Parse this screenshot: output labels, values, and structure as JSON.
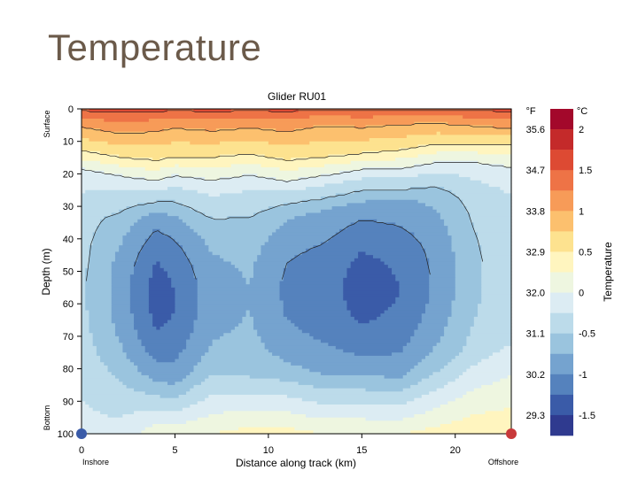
{
  "slide": {
    "title": "Temperature"
  },
  "chart_data": {
    "type": "heatmap",
    "subtype": "filled-contour",
    "title": "Glider RU01",
    "xlabel": "Distance along track (km)",
    "ylabel": "Depth (m)",
    "xlim": [
      0,
      23
    ],
    "ylim": [
      100,
      0
    ],
    "x_ticks": [
      "0",
      "5",
      "10",
      "15",
      "20"
    ],
    "y_ticks": [
      "0",
      "10",
      "20",
      "30",
      "40",
      "50",
      "60",
      "70",
      "80",
      "90",
      "100"
    ],
    "y_annotations": {
      "top": "Surface",
      "bottom": "Bottom"
    },
    "x_annotations": {
      "left": "Inshore",
      "right": "Offshore"
    },
    "endpoint_markers": [
      {
        "label": "Inshore",
        "x": 0,
        "y": 100,
        "color": "#3a5ba8"
      },
      {
        "label": "Offshore",
        "x": 23,
        "y": 100,
        "color": "#c8393a"
      }
    ],
    "colorbar": {
      "label": "Temperature",
      "unit_left": "°F",
      "unit_right": "°C",
      "levels_c": [
        -1.5,
        -1.25,
        -1,
        -0.75,
        -0.5,
        -0.25,
        0,
        0.25,
        0.5,
        0.75,
        1,
        1.25,
        1.5,
        1.75,
        2,
        2.25
      ],
      "colors": [
        "#2f3a8f",
        "#3a5ba8",
        "#5582bd",
        "#75a3cf",
        "#9ac4de",
        "#bcdbea",
        "#dcecf3",
        "#eef6e0",
        "#fff5bf",
        "#fde28f",
        "#fcc06e",
        "#f79b58",
        "#ee7346",
        "#dd4a33",
        "#c42a2a",
        "#a3082b"
      ],
      "ticks_f": [
        "35.6",
        "34.7",
        "33.8",
        "32.9",
        "32.0",
        "31.1",
        "30.2",
        "29.3"
      ],
      "ticks_c": [
        "2",
        "1.5",
        "1",
        "0.5",
        "0",
        "-0.5",
        "-1",
        "-1.5"
      ]
    },
    "sections": [
      {
        "x": 0,
        "top_depth": 4,
        "warm_depth": 12,
        "tc_depth": 20,
        "core_top": 32,
        "core_bottom": 78,
        "min_c": -0.2,
        "bottom_c": 0.1
      },
      {
        "x": 2,
        "top_depth": 6,
        "warm_depth": 14,
        "tc_depth": 22,
        "core_top": 34,
        "core_bottom": 80,
        "min_c": -0.6,
        "bottom_c": 0.1
      },
      {
        "x": 4,
        "top_depth": 5,
        "warm_depth": 15,
        "tc_depth": 24,
        "core_top": 33,
        "core_bottom": 82,
        "min_c": -1.1,
        "bottom_c": 0.4
      },
      {
        "x": 5,
        "top_depth": 4,
        "warm_depth": 14,
        "tc_depth": 22,
        "core_top": 34,
        "core_bottom": 84,
        "min_c": -1.0,
        "bottom_c": 0.4
      },
      {
        "x": 7,
        "top_depth": 5,
        "warm_depth": 14,
        "tc_depth": 24,
        "core_top": 36,
        "core_bottom": 80,
        "min_c": -0.6,
        "bottom_c": 0.5
      },
      {
        "x": 9,
        "top_depth": 4,
        "warm_depth": 13,
        "tc_depth": 22,
        "core_top": 34,
        "core_bottom": 82,
        "min_c": -0.5,
        "bottom_c": 0.6
      },
      {
        "x": 11,
        "top_depth": 5,
        "warm_depth": 15,
        "tc_depth": 24,
        "core_top": 32,
        "core_bottom": 80,
        "min_c": -0.8,
        "bottom_c": 0.6
      },
      {
        "x": 13,
        "top_depth": 3,
        "warm_depth": 14,
        "tc_depth": 22,
        "core_top": 31,
        "core_bottom": 82,
        "min_c": -0.9,
        "bottom_c": 0.5
      },
      {
        "x": 15,
        "top_depth": 4,
        "warm_depth": 13,
        "tc_depth": 20,
        "core_top": 30,
        "core_bottom": 80,
        "min_c": -1.1,
        "bottom_c": 0.5
      },
      {
        "x": 17,
        "top_depth": 3,
        "warm_depth": 12,
        "tc_depth": 20,
        "core_top": 29,
        "core_bottom": 82,
        "min_c": -1.0,
        "bottom_c": 0.5
      },
      {
        "x": 19,
        "top_depth": 3,
        "warm_depth": 10,
        "tc_depth": 18,
        "core_top": 26,
        "core_bottom": 78,
        "min_c": -0.7,
        "bottom_c": 0.6
      },
      {
        "x": 21,
        "top_depth": 4,
        "warm_depth": 10,
        "tc_depth": 18,
        "core_top": 28,
        "core_bottom": 74,
        "min_c": -0.3,
        "bottom_c": 0.7
      },
      {
        "x": 23,
        "top_depth": 5,
        "warm_depth": 10,
        "tc_depth": 20,
        "core_top": 30,
        "core_bottom": 70,
        "min_c": -0.1,
        "bottom_c": 0.7
      }
    ],
    "surface_max_c": 1.8,
    "grid": false
  }
}
